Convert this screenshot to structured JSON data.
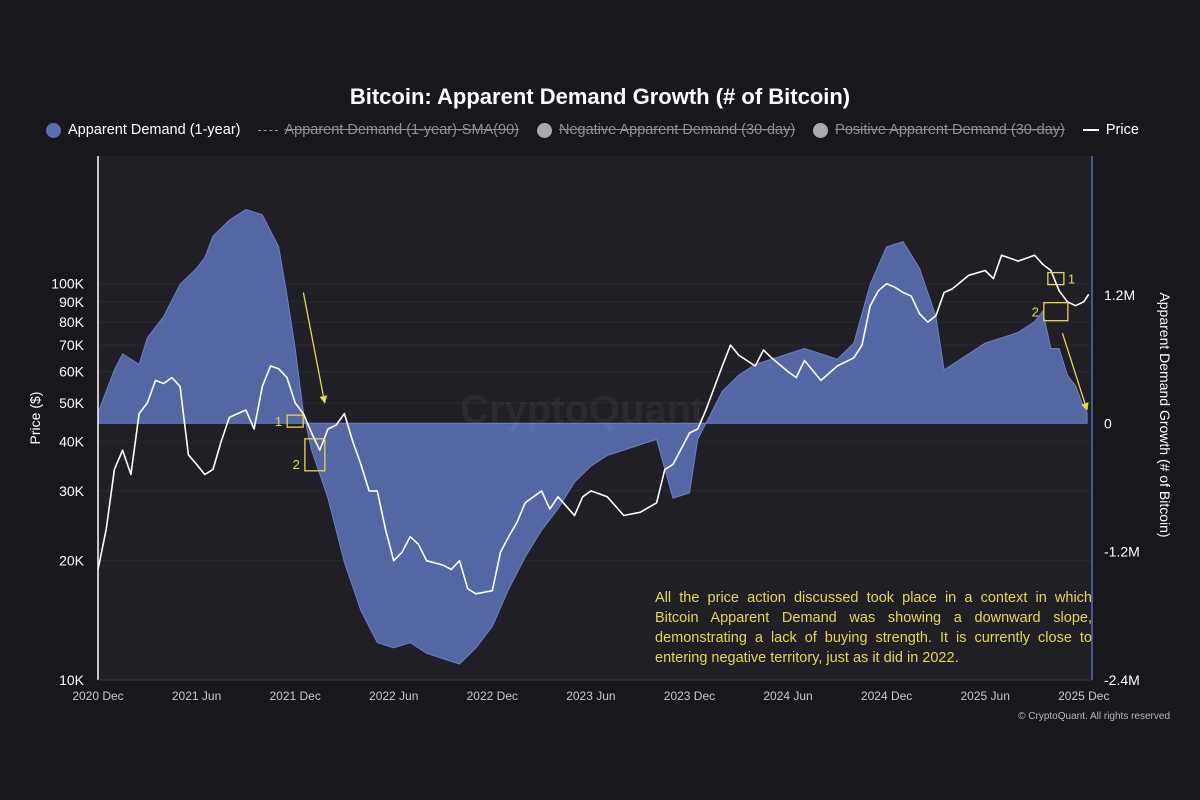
{
  "title": "Bitcoin: Apparent Demand Growth (# of Bitcoin)",
  "legend": [
    {
      "label": "Apparent Demand (1-year)",
      "marker": "dot",
      "color": "#5a6db0",
      "active": true
    },
    {
      "label": "Apparent Demand (1-year)-SMA(90)",
      "marker": "dash",
      "color": "#9a9aa0",
      "active": false
    },
    {
      "label": "Negative Apparent Demand (30-day)",
      "marker": "dot",
      "color": "#a9a9b0",
      "active": false
    },
    {
      "label": "Positive Apparent Demand (30-day)",
      "marker": "dot",
      "color": "#a9a9b0",
      "active": false
    },
    {
      "label": "Price",
      "marker": "line",
      "color": "#ffffff",
      "active": true
    }
  ],
  "watermark": "CryptoQuant",
  "copyright": "© CryptoQuant. All rights reserved",
  "annotation_text": "All the price action discussed took place in a context in which Bitcoin Apparent Demand was showing a downward slope, demonstrating a lack of buying strength. It is currently close to entering negative territory, just as it did in 2022.",
  "colors": {
    "demand_fill": "#5a6db0",
    "price": "#ffffff",
    "annotation": "#e4d94c",
    "plot_bg": "#1f1f25"
  },
  "chart_data": {
    "type": "area",
    "x_range": [
      0,
      60.5
    ],
    "x_unit": "months since 2020 Dec",
    "x_ticks": [
      {
        "t": 0,
        "label": "2020 Dec"
      },
      {
        "t": 6,
        "label": "2021 Jun"
      },
      {
        "t": 12,
        "label": "2021 Dec"
      },
      {
        "t": 18,
        "label": "2022 Jun"
      },
      {
        "t": 24,
        "label": "2022 Dec"
      },
      {
        "t": 30,
        "label": "2023 Jun"
      },
      {
        "t": 36,
        "label": "2023 Dec"
      },
      {
        "t": 42,
        "label": "2024 Jun"
      },
      {
        "t": 48,
        "label": "2024 Dec"
      },
      {
        "t": 54,
        "label": "2025 Jun"
      },
      {
        "t": 60,
        "label": "2025 Dec"
      }
    ],
    "y_left": {
      "label": "Price ($)",
      "scale": "log",
      "range": [
        10000,
        210000
      ],
      "ticks": [
        {
          "v": 10000,
          "label": "10K"
        },
        {
          "v": 20000,
          "label": "20K"
        },
        {
          "v": 30000,
          "label": "30K"
        },
        {
          "v": 40000,
          "label": "40K"
        },
        {
          "v": 50000,
          "label": "50K"
        },
        {
          "v": 60000,
          "label": "60K"
        },
        {
          "v": 70000,
          "label": "70K"
        },
        {
          "v": 80000,
          "label": "80K"
        },
        {
          "v": 90000,
          "label": "90K"
        },
        {
          "v": 100000,
          "label": "100K"
        }
      ]
    },
    "y_right": {
      "label": "Apparent Demand Growth (# of Bitcoin)",
      "scale": "linear",
      "range": [
        -2400000,
        2500000
      ],
      "ticks": [
        {
          "v": 1200000,
          "label": "1.2M"
        },
        {
          "v": 0,
          "label": "0"
        },
        {
          "v": -1200000,
          "label": "-1.2M"
        },
        {
          "v": -2400000,
          "label": "-2.4M"
        }
      ]
    },
    "series": [
      {
        "name": "Apparent Demand (1-year)",
        "axis": "right",
        "type": "area",
        "points": [
          [
            0,
            100000
          ],
          [
            0.5,
            300000
          ],
          [
            1,
            500000
          ],
          [
            1.5,
            650000
          ],
          [
            2,
            600000
          ],
          [
            2.5,
            550000
          ],
          [
            3,
            800000
          ],
          [
            4,
            1000000
          ],
          [
            5,
            1300000
          ],
          [
            6,
            1450000
          ],
          [
            6.5,
            1550000
          ],
          [
            7,
            1750000
          ],
          [
            8,
            1900000
          ],
          [
            9,
            2000000
          ],
          [
            10,
            1950000
          ],
          [
            11,
            1650000
          ],
          [
            11.5,
            1200000
          ],
          [
            12,
            700000
          ],
          [
            12.5,
            100000
          ],
          [
            13,
            -250000
          ],
          [
            14,
            -700000
          ],
          [
            15,
            -1300000
          ],
          [
            16,
            -1750000
          ],
          [
            17,
            -2050000
          ],
          [
            18,
            -2100000
          ],
          [
            19,
            -2050000
          ],
          [
            20,
            -2150000
          ],
          [
            21,
            -2200000
          ],
          [
            22,
            -2250000
          ],
          [
            23,
            -2100000
          ],
          [
            24,
            -1900000
          ],
          [
            25,
            -1550000
          ],
          [
            26,
            -1250000
          ],
          [
            27,
            -1000000
          ],
          [
            28,
            -800000
          ],
          [
            29,
            -550000
          ],
          [
            30,
            -400000
          ],
          [
            31,
            -300000
          ],
          [
            32,
            -250000
          ],
          [
            33,
            -200000
          ],
          [
            34,
            -150000
          ],
          [
            35,
            -700000
          ],
          [
            36,
            -650000
          ],
          [
            36.5,
            -150000
          ],
          [
            37,
            0
          ],
          [
            38,
            300000
          ],
          [
            39,
            450000
          ],
          [
            40,
            550000
          ],
          [
            41,
            600000
          ],
          [
            42,
            650000
          ],
          [
            43,
            700000
          ],
          [
            44,
            650000
          ],
          [
            45,
            600000
          ],
          [
            46,
            750000
          ],
          [
            47,
            1300000
          ],
          [
            48,
            1650000
          ],
          [
            49,
            1700000
          ],
          [
            50,
            1450000
          ],
          [
            51,
            1000000
          ],
          [
            51.5,
            500000
          ],
          [
            52,
            550000
          ],
          [
            53,
            650000
          ],
          [
            54,
            750000
          ],
          [
            55,
            800000
          ],
          [
            56,
            850000
          ],
          [
            57,
            950000
          ],
          [
            57.5,
            1050000
          ],
          [
            58,
            700000
          ],
          [
            58.5,
            700000
          ],
          [
            59,
            450000
          ],
          [
            59.5,
            350000
          ],
          [
            60,
            150000
          ],
          [
            60.2,
            100000
          ]
        ]
      },
      {
        "name": "Price",
        "axis": "left",
        "type": "line",
        "points": [
          [
            0,
            19000
          ],
          [
            0.5,
            24000
          ],
          [
            1,
            34000
          ],
          [
            1.5,
            38000
          ],
          [
            2,
            33000
          ],
          [
            2.5,
            47000
          ],
          [
            3,
            50000
          ],
          [
            3.5,
            57000
          ],
          [
            4,
            56000
          ],
          [
            4.5,
            58000
          ],
          [
            5,
            55000
          ],
          [
            5.5,
            37000
          ],
          [
            6,
            35000
          ],
          [
            6.5,
            33000
          ],
          [
            7,
            34000
          ],
          [
            7.5,
            40000
          ],
          [
            8,
            46000
          ],
          [
            8.5,
            47000
          ],
          [
            9,
            48000
          ],
          [
            9.5,
            43000
          ],
          [
            10,
            55000
          ],
          [
            10.5,
            62000
          ],
          [
            11,
            61000
          ],
          [
            11.5,
            58000
          ],
          [
            12,
            50000
          ],
          [
            12.5,
            47000
          ],
          [
            13,
            42000
          ],
          [
            13.5,
            38000
          ],
          [
            14,
            43000
          ],
          [
            14.5,
            44000
          ],
          [
            15,
            47000
          ],
          [
            15.5,
            40000
          ],
          [
            16,
            35000
          ],
          [
            16.5,
            30000
          ],
          [
            17,
            30000
          ],
          [
            17.5,
            24000
          ],
          [
            18,
            20000
          ],
          [
            18.5,
            21000
          ],
          [
            19,
            23000
          ],
          [
            19.5,
            22000
          ],
          [
            20,
            20000
          ],
          [
            21,
            19500
          ],
          [
            21.5,
            19000
          ],
          [
            22,
            20000
          ],
          [
            22.5,
            17000
          ],
          [
            23,
            16500
          ],
          [
            24,
            16800
          ],
          [
            24.5,
            21000
          ],
          [
            25,
            23000
          ],
          [
            25.5,
            25000
          ],
          [
            26,
            28000
          ],
          [
            27,
            30000
          ],
          [
            27.5,
            27000
          ],
          [
            28,
            29000
          ],
          [
            29,
            26000
          ],
          [
            29.5,
            29000
          ],
          [
            30,
            30000
          ],
          [
            31,
            29000
          ],
          [
            32,
            26000
          ],
          [
            33,
            26500
          ],
          [
            34,
            28000
          ],
          [
            34.5,
            34000
          ],
          [
            35,
            35000
          ],
          [
            36,
            42000
          ],
          [
            36.5,
            43000
          ],
          [
            37,
            48000
          ],
          [
            38,
            62000
          ],
          [
            38.5,
            70000
          ],
          [
            39,
            66000
          ],
          [
            40,
            62000
          ],
          [
            40.5,
            68000
          ],
          [
            41,
            65000
          ],
          [
            42,
            60000
          ],
          [
            42.5,
            58000
          ],
          [
            43,
            64000
          ],
          [
            44,
            57000
          ],
          [
            45,
            62000
          ],
          [
            46,
            65000
          ],
          [
            46.5,
            70000
          ],
          [
            47,
            88000
          ],
          [
            47.5,
            96000
          ],
          [
            48,
            100000
          ],
          [
            48.5,
            98000
          ],
          [
            49,
            95000
          ],
          [
            49.5,
            93000
          ],
          [
            50,
            84000
          ],
          [
            50.5,
            80000
          ],
          [
            51,
            83000
          ],
          [
            51.5,
            95000
          ],
          [
            52,
            97000
          ],
          [
            53,
            105000
          ],
          [
            54,
            108000
          ],
          [
            54.5,
            103000
          ],
          [
            55,
            118000
          ],
          [
            56,
            114000
          ],
          [
            56.5,
            116000
          ],
          [
            57,
            118000
          ],
          [
            57.5,
            112000
          ],
          [
            58,
            108000
          ],
          [
            58.5,
            96000
          ],
          [
            59,
            90000
          ],
          [
            59.5,
            88000
          ],
          [
            60,
            90000
          ],
          [
            60.3,
            94000
          ]
        ]
      }
    ],
    "markers": [
      {
        "label": "1",
        "t": 12,
        "price": 45000
      },
      {
        "label": "2",
        "t": 13.2,
        "price": 37000
      },
      {
        "label": "1",
        "t": 58.3,
        "price": 103000
      },
      {
        "label": "2",
        "t": 58.3,
        "price": 85000
      }
    ],
    "arrows": [
      {
        "from": [
          12.5,
          95000
        ],
        "to": [
          13.8,
          50000
        ]
      },
      {
        "from": [
          58.7,
          75000
        ],
        "to": [
          60.2,
          48000
        ]
      }
    ]
  }
}
